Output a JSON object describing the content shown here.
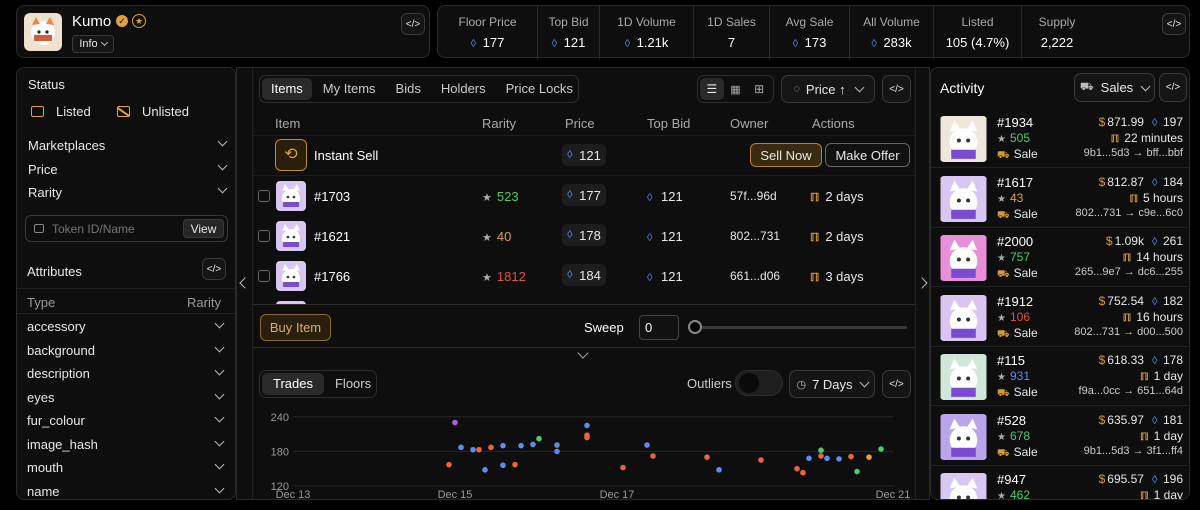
{
  "collection": {
    "name": "Kumo",
    "info_label": "Info"
  },
  "stats": [
    {
      "label": "Floor Price",
      "value": "177",
      "eth": true
    },
    {
      "label": "Top Bid",
      "value": "121",
      "eth": true
    },
    {
      "label": "1D Volume",
      "value": "1.21k",
      "eth": true
    },
    {
      "label": "1D Sales",
      "value": "7",
      "eth": false
    },
    {
      "label": "Avg Sale",
      "value": "173",
      "eth": true
    },
    {
      "label": "All Volume",
      "value": "283k",
      "eth": true
    },
    {
      "label": "Listed",
      "value": "105 (4.7%)",
      "eth": false
    },
    {
      "label": "Supply",
      "value": "2,222",
      "eth": false
    }
  ],
  "filters": {
    "status_label": "Status",
    "listed": "Listed",
    "unlisted": "Unlisted",
    "marketplaces": "Marketplaces",
    "price": "Price",
    "rarity": "Rarity",
    "search_placeholder": "Token ID/Name",
    "view": "View",
    "attributes": "Attributes",
    "type_col": "Type",
    "rarity_col": "Rarity",
    "attrs": [
      "accessory",
      "background",
      "description",
      "eyes",
      "fur_colour",
      "image_hash",
      "mouth",
      "name"
    ]
  },
  "tabs": [
    "Items",
    "My Items",
    "Bids",
    "Holders",
    "Price Locks"
  ],
  "sort_label": "Price ↑",
  "table": {
    "headers": [
      "Item",
      "Rarity",
      "Price",
      "Top Bid",
      "Owner",
      "Actions"
    ],
    "instant": {
      "label": "Instant Sell",
      "price": "121",
      "sell": "Sell Now",
      "offer": "Make Offer"
    },
    "rows": [
      {
        "name": "#1703",
        "rarity": "523",
        "rclass": "green",
        "price": "177",
        "bid": "121",
        "owner": "57f...96d",
        "time": "2 days"
      },
      {
        "name": "#1621",
        "rarity": "40",
        "rclass": "orange",
        "price": "178",
        "bid": "121",
        "owner": "802...731",
        "time": "2 days"
      },
      {
        "name": "#1766",
        "rarity": "1812",
        "rclass": "red",
        "price": "184",
        "bid": "121",
        "owner": "661...d06",
        "time": "3 days"
      }
    ]
  },
  "buy": {
    "buy_label": "Buy Item",
    "sweep_label": "Sweep",
    "sweep_value": "0"
  },
  "chart_tabs": [
    "Trades",
    "Floors"
  ],
  "outliers_label": "Outliers",
  "range_label": "7 Days",
  "chart_data": {
    "type": "scatter",
    "yticks": [
      240,
      180,
      120
    ],
    "xticks": [
      "Dec 13",
      "Dec 15",
      "Dec 17",
      "Dec 21"
    ],
    "ylim": [
      120,
      250
    ],
    "xlim": [
      0,
      100
    ],
    "points": [
      {
        "x": 27,
        "y": 230,
        "c": "#a066e0"
      },
      {
        "x": 28,
        "y": 187,
        "c": "#5b8def"
      },
      {
        "x": 26,
        "y": 157,
        "c": "#e8663d"
      },
      {
        "x": 30,
        "y": 183,
        "c": "#5b8def"
      },
      {
        "x": 31,
        "y": 183,
        "c": "#e8663d"
      },
      {
        "x": 33,
        "y": 187,
        "c": "#e8663d"
      },
      {
        "x": 32,
        "y": 148,
        "c": "#5b8def"
      },
      {
        "x": 35,
        "y": 190,
        "c": "#5b8def"
      },
      {
        "x": 35,
        "y": 156,
        "c": "#5b8def"
      },
      {
        "x": 37,
        "y": 157,
        "c": "#e8663d"
      },
      {
        "x": 38,
        "y": 190,
        "c": "#5b8def"
      },
      {
        "x": 40,
        "y": 192,
        "c": "#5b8def"
      },
      {
        "x": 41,
        "y": 202,
        "c": "#4ccb6a"
      },
      {
        "x": 44,
        "y": 191,
        "c": "#5b8def"
      },
      {
        "x": 44,
        "y": 180,
        "c": "#5b8def"
      },
      {
        "x": 49,
        "y": 225,
        "c": "#5b8def"
      },
      {
        "x": 49,
        "y": 208,
        "c": "#e8663d"
      },
      {
        "x": 49,
        "y": 204,
        "c": "#e8663d"
      },
      {
        "x": 55,
        "y": 152,
        "c": "#e8663d"
      },
      {
        "x": 59,
        "y": 191,
        "c": "#5b8def"
      },
      {
        "x": 60,
        "y": 172,
        "c": "#e8663d"
      },
      {
        "x": 69,
        "y": 170,
        "c": "#e8663d"
      },
      {
        "x": 71,
        "y": 148,
        "c": "#5b8def"
      },
      {
        "x": 78,
        "y": 165,
        "c": "#e8663d"
      },
      {
        "x": 84,
        "y": 150,
        "c": "#e8663d"
      },
      {
        "x": 85,
        "y": 143,
        "c": "#e8663d"
      },
      {
        "x": 86,
        "y": 168,
        "c": "#5b8def"
      },
      {
        "x": 88,
        "y": 182,
        "c": "#4ccb6a"
      },
      {
        "x": 88,
        "y": 172,
        "c": "#e8663d"
      },
      {
        "x": 89,
        "y": 168,
        "c": "#5b8def"
      },
      {
        "x": 91,
        "y": 167,
        "c": "#5b8def"
      },
      {
        "x": 93,
        "y": 171,
        "c": "#e8663d"
      },
      {
        "x": 94,
        "y": 145,
        "c": "#4ccb6a"
      },
      {
        "x": 96,
        "y": 170,
        "c": "#e0a33b"
      },
      {
        "x": 98,
        "y": 184,
        "c": "#4ccb6a"
      }
    ]
  },
  "activity": {
    "title": "Activity",
    "filter": "Sales",
    "items": [
      {
        "name": "#1934",
        "rank": "505",
        "rclass": "green",
        "usd": "871.99",
        "eth": "197",
        "time": "22 minutes",
        "type": "Sale",
        "from": "9b1...5d3",
        "to": "bff...bbf",
        "bg": "#efe7dc"
      },
      {
        "name": "#1617",
        "rank": "43",
        "rclass": "orange",
        "usd": "812.87",
        "eth": "184",
        "time": "5 hours",
        "type": "Sale",
        "from": "802...731",
        "to": "c9e...6c0",
        "bg": "#d8c7f3"
      },
      {
        "name": "#2000",
        "rank": "757",
        "rclass": "green",
        "usd": "1.09k",
        "eth": "261",
        "time": "14 hours",
        "type": "Sale",
        "from": "265...9e7",
        "to": "dc6...255",
        "bg": "#e78fd8"
      },
      {
        "name": "#1912",
        "rank": "106",
        "rclass": "red",
        "usd": "752.54",
        "eth": "182",
        "time": "16 hours",
        "type": "Sale",
        "from": "802...731",
        "to": "d00...500",
        "bg": "#d9c4f2"
      },
      {
        "name": "#115",
        "rank": "931",
        "rclass": "blue",
        "usd": "618.33",
        "eth": "178",
        "time": "1 day",
        "type": "Sale",
        "from": "f9a...0cc",
        "to": "651...64d",
        "bg": "#cfe8d8"
      },
      {
        "name": "#528",
        "rank": "678",
        "rclass": "green",
        "usd": "635.97",
        "eth": "181",
        "time": "1 day",
        "type": "Sale",
        "from": "9b1...5d3",
        "to": "3f1...ff4",
        "bg": "#b9a5ea"
      },
      {
        "name": "#947",
        "rank": "462",
        "rclass": "green",
        "usd": "695.57",
        "eth": "196",
        "time": "1 day",
        "type": "Sale",
        "from": "",
        "to": "",
        "bg": "#d8c7f3"
      }
    ]
  }
}
